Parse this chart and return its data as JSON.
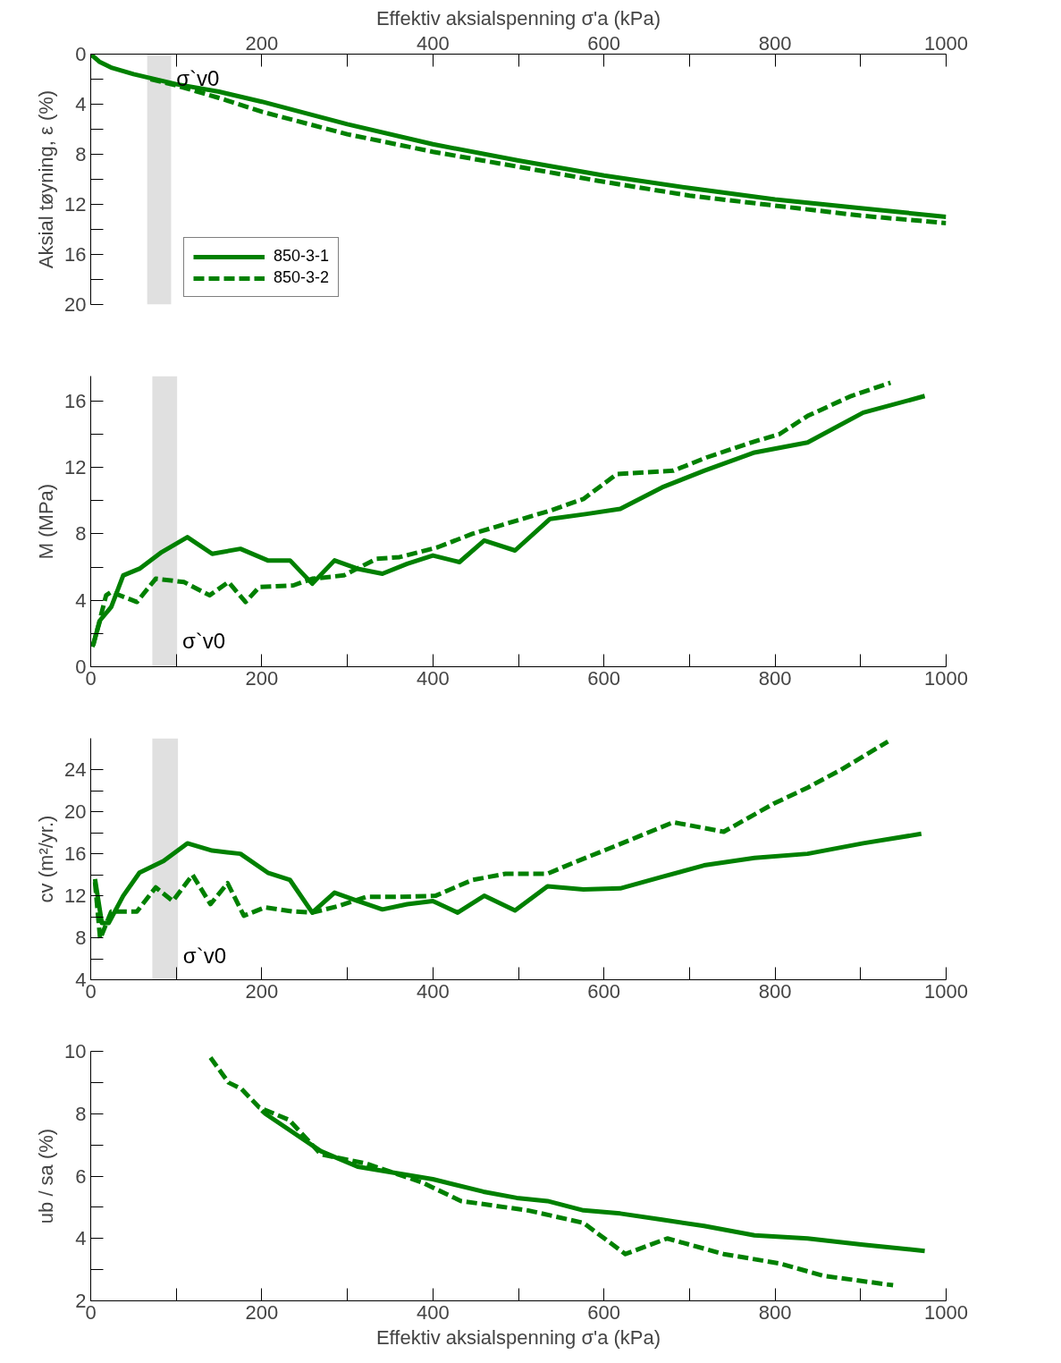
{
  "chart_data": [
    {
      "type": "line",
      "xlabel": "Effektiv aksialspenning σ'a (kPa)",
      "ylabel": "Aksial tøyning, ε (%)",
      "xlim": [
        0,
        1000
      ],
      "xticks": [
        {
          "value": 0,
          "label": null
        },
        {
          "value": 100,
          "label": null
        },
        200,
        {
          "value": 300,
          "label": null
        },
        400,
        {
          "value": 500,
          "label": null
        },
        600,
        {
          "value": 700,
          "label": null
        },
        800,
        {
          "value": 900,
          "label": null
        },
        1000
      ],
      "ylim": [
        20,
        0
      ],
      "yticks": [
        0,
        {
          "value": 2,
          "label": null
        },
        4,
        {
          "value": 6,
          "label": null
        },
        8,
        {
          "value": 10,
          "label": null
        },
        12,
        {
          "value": 14,
          "label": null
        },
        16,
        {
          "value": 18,
          "label": null
        },
        20
      ],
      "grid": false,
      "legend": "bottom left",
      "bands": [
        {
          "axis": "x",
          "from": 66,
          "to": 94,
          "label": "σ`v0",
          "color": "#000000"
        }
      ],
      "series": [
        {
          "name": "850-3-1",
          "color": "#008000",
          "line_style": "solid",
          "x": [
            0,
            10,
            25,
            50,
            100,
            150,
            200,
            300,
            400,
            500,
            600,
            700,
            800,
            900,
            1000
          ],
          "values": [
            0,
            0.6,
            1.1,
            1.6,
            2.4,
            3.0,
            3.8,
            5.6,
            7.2,
            8.5,
            9.7,
            10.7,
            11.6,
            12.3,
            13.0
          ]
        },
        {
          "name": "850-3-2",
          "color": "#008000",
          "line_style": "dashed",
          "x": [
            70,
            100,
            150,
            200,
            300,
            400,
            500,
            600,
            700,
            800,
            900,
            1000
          ],
          "values": [
            2.0,
            2.5,
            3.5,
            4.6,
            6.4,
            7.8,
            9.0,
            10.2,
            11.3,
            12.1,
            12.9,
            13.5
          ]
        }
      ]
    },
    {
      "type": "line",
      "ylabel": "M (MPa)",
      "xlim": [
        0,
        1000
      ],
      "xticks": [
        0,
        {
          "value": 100,
          "label": null
        },
        200,
        {
          "value": 300,
          "label": null
        },
        400,
        {
          "value": 500,
          "label": null
        },
        600,
        {
          "value": 700,
          "label": null
        },
        800,
        {
          "value": 900,
          "label": null
        },
        1000
      ],
      "ylim": [
        0,
        17.5
      ],
      "yticks": [
        0,
        {
          "value": 2,
          "label": null
        },
        4,
        {
          "value": 6,
          "label": null
        },
        8,
        {
          "value": 10,
          "label": null
        },
        12,
        {
          "value": 14,
          "label": null
        },
        16
      ],
      "grid": false,
      "bands": [
        {
          "axis": "x",
          "from": 72,
          "to": 101,
          "label": "σ`v0",
          "color": "#000000"
        }
      ],
      "series": [
        {
          "color": "#008000",
          "line_style": "solid",
          "x": [
            2,
            11,
            24,
            38,
            57,
            83,
            113,
            142,
            175,
            207,
            233,
            259,
            285,
            312,
            341,
            370,
            400,
            431,
            460,
            496,
            537,
            580,
            619,
            668,
            717,
            776,
            838,
            903,
            975
          ],
          "values": [
            1.2,
            2.8,
            3.6,
            5.5,
            5.9,
            6.9,
            7.8,
            6.8,
            7.1,
            6.4,
            6.4,
            5.0,
            6.4,
            5.9,
            5.6,
            6.2,
            6.7,
            6.3,
            7.6,
            7.0,
            8.9,
            9.2,
            9.5,
            10.8,
            11.8,
            12.9,
            13.5,
            15.3,
            16.3
          ]
        },
        {
          "color": "#008000",
          "line_style": "dashed",
          "x": [
            3,
            18,
            24,
            54,
            76,
            109,
            139,
            161,
            181,
            197,
            237,
            259,
            296,
            334,
            361,
            406,
            446,
            498,
            537,
            576,
            615,
            681,
            720,
            772,
            805,
            838,
            889,
            935
          ],
          "values": [
            1.3,
            4.3,
            4.5,
            3.9,
            5.3,
            5.1,
            4.3,
            5.1,
            3.9,
            4.8,
            4.9,
            5.3,
            5.5,
            6.5,
            6.6,
            7.2,
            8.0,
            8.8,
            9.4,
            10.1,
            11.6,
            11.8,
            12.6,
            13.5,
            14.0,
            15.1,
            16.3,
            17.1
          ]
        }
      ]
    },
    {
      "type": "line",
      "ylabel": "cv (m²/yr.)",
      "xlim": [
        0,
        1000
      ],
      "xticks": [
        0,
        {
          "value": 100,
          "label": null
        },
        200,
        {
          "value": 300,
          "label": null
        },
        400,
        {
          "value": 500,
          "label": null
        },
        600,
        {
          "value": 700,
          "label": null
        },
        800,
        {
          "value": 900,
          "label": null
        },
        1000
      ],
      "ylim": [
        4,
        27
      ],
      "yticks": [
        4,
        {
          "value": 6,
          "label": null
        },
        8,
        {
          "value": 10,
          "label": null
        },
        12,
        {
          "value": 14,
          "label": null
        },
        16,
        {
          "value": 18,
          "label": null
        },
        20,
        {
          "value": 22,
          "label": null
        },
        24
      ],
      "grid": false,
      "bands": [
        {
          "axis": "x",
          "from": 72,
          "to": 102,
          "label": "σ`v0",
          "color": "#000000"
        }
      ],
      "series": [
        {
          "color": "#008000",
          "line_style": "solid",
          "x": [
            5,
            13,
            21,
            38,
            57,
            85,
            113,
            142,
            175,
            207,
            233,
            259,
            285,
            312,
            341,
            370,
            400,
            429,
            460,
            496,
            534,
            576,
            619,
            668,
            717,
            776,
            838,
            903,
            971
          ],
          "values": [
            13.6,
            9.4,
            9.4,
            12.0,
            14.2,
            15.3,
            17.0,
            16.3,
            16.0,
            14.2,
            13.5,
            10.4,
            12.3,
            11.5,
            10.7,
            11.2,
            11.5,
            10.4,
            12.0,
            10.6,
            12.9,
            12.6,
            12.7,
            13.8,
            14.9,
            15.6,
            16.0,
            17.0,
            17.9
          ]
        },
        {
          "color": "#008000",
          "line_style": "dashed",
          "x": [
            5,
            11,
            24,
            54,
            76,
            96,
            119,
            140,
            160,
            179,
            204,
            237,
            259,
            289,
            322,
            361,
            403,
            446,
            485,
            534,
            563,
            615,
            681,
            740,
            799,
            838,
            877,
            932
          ],
          "values": [
            13.3,
            7.9,
            10.5,
            10.5,
            12.8,
            11.5,
            14.0,
            11.2,
            13.2,
            10.1,
            10.9,
            10.5,
            10.4,
            11.0,
            11.9,
            11.9,
            12.0,
            13.5,
            14.1,
            14.1,
            15.1,
            16.8,
            19.0,
            18.1,
            20.8,
            22.3,
            24.0,
            26.7
          ]
        }
      ]
    },
    {
      "type": "line",
      "xlabel": "Effektiv aksialspenning σ'a (kPa)",
      "ylabel": "ub / sa (%)",
      "xlim": [
        0,
        1000
      ],
      "xticks": [
        0,
        {
          "value": 100,
          "label": null
        },
        200,
        {
          "value": 300,
          "label": null
        },
        400,
        {
          "value": 500,
          "label": null
        },
        600,
        {
          "value": 700,
          "label": null
        },
        800,
        {
          "value": 900,
          "label": null
        },
        1000
      ],
      "ylim": [
        2,
        10
      ],
      "yticks": [
        2,
        {
          "value": 3,
          "label": null
        },
        4,
        {
          "value": 5,
          "label": null
        },
        6,
        {
          "value": 7,
          "label": null
        },
        8,
        {
          "value": 9,
          "label": null
        },
        10
      ],
      "grid": false,
      "series": [
        {
          "color": "#008000",
          "line_style": "solid",
          "x": [
            200,
            204,
            269,
            312,
            400,
            459,
            498,
            534,
            576,
            619,
            668,
            717,
            776,
            838,
            903,
            975
          ],
          "values": [
            8.1,
            8.0,
            6.8,
            6.3,
            5.9,
            5.5,
            5.3,
            5.2,
            4.9,
            4.8,
            4.6,
            4.4,
            4.1,
            4.0,
            3.8,
            3.6
          ]
        },
        {
          "color": "#008000",
          "line_style": "dashed",
          "x": [
            140,
            161,
            176,
            197,
            232,
            269,
            322,
            387,
            433,
            511,
            576,
            625,
            674,
            740,
            805,
            857,
            938
          ],
          "values": [
            9.8,
            9.0,
            8.8,
            8.2,
            7.8,
            6.7,
            6.4,
            5.8,
            5.2,
            4.9,
            4.5,
            3.5,
            4.0,
            3.5,
            3.2,
            2.8,
            2.5
          ]
        }
      ]
    }
  ]
}
